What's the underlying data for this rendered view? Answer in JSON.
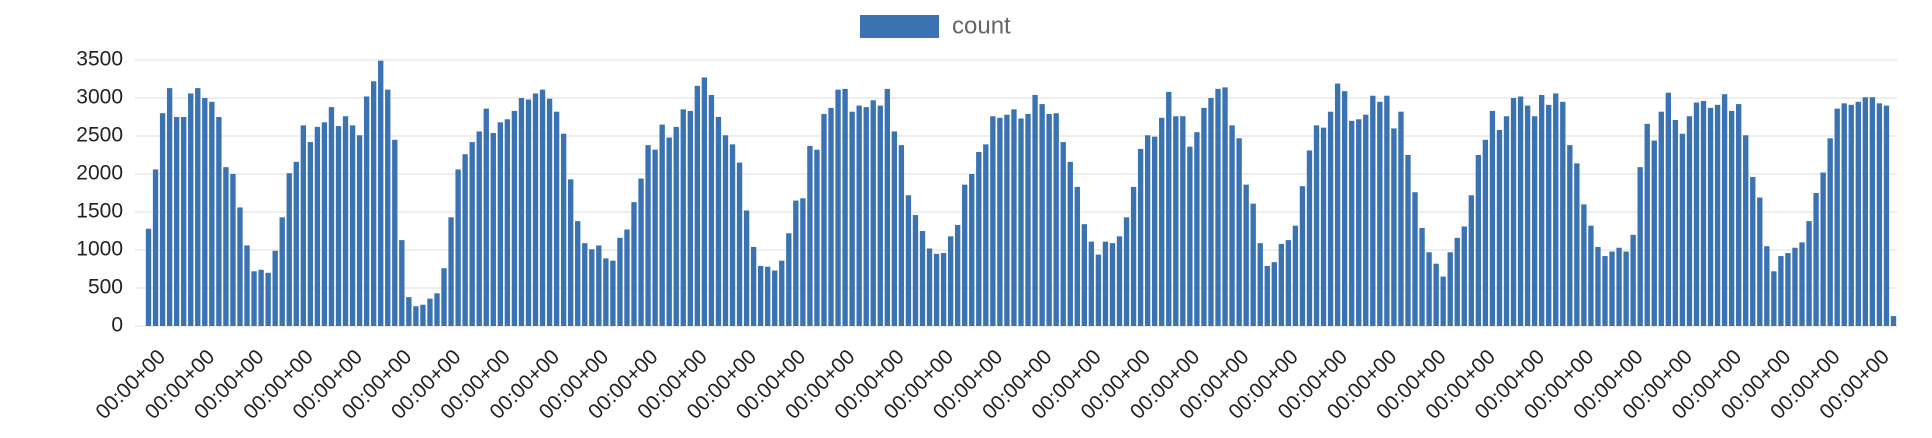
{
  "chart_data": {
    "type": "bar",
    "legend": "count",
    "color": "#3b72b1",
    "grid": true,
    "ylim": [
      0,
      3500
    ],
    "yticks": [
      0,
      500,
      1000,
      1500,
      2000,
      2500,
      3000,
      3500
    ],
    "categories": [
      null,
      null,
      "00:00+00",
      null,
      null,
      null,
      null,
      null,
      null,
      "00:00+00",
      null,
      null,
      null,
      null,
      null,
      null,
      "00:00+00",
      null,
      null,
      null,
      null,
      null,
      null,
      "00:00+00",
      null,
      null,
      null,
      null,
      null,
      null,
      "00:00+00",
      null,
      null,
      null,
      null,
      null,
      null,
      "00:00+00",
      null,
      null,
      null,
      null,
      null,
      null,
      "00:00+00",
      null,
      null,
      null,
      null,
      null,
      null,
      "00:00+00",
      null,
      null,
      null,
      null,
      null,
      null,
      "00:00+00",
      null,
      null,
      null,
      null,
      null,
      null,
      "00:00+00",
      null,
      null,
      null,
      null,
      null,
      null,
      "00:00+00",
      null,
      null,
      null,
      null,
      null,
      null,
      "00:00+00",
      null,
      null,
      null,
      null,
      null,
      null,
      "00:00+00",
      null,
      null,
      null,
      null,
      null,
      null,
      "00:00+00",
      null,
      null,
      null,
      null,
      null,
      null,
      "00:00+00",
      null,
      null,
      null,
      null,
      null,
      null,
      "00:00+00",
      null,
      null,
      null,
      null,
      null,
      null,
      "00:00+00",
      null,
      null,
      null,
      null,
      null,
      null,
      "00:00+00",
      null,
      null,
      null,
      null,
      null,
      null,
      "00:00+00",
      null,
      null,
      null,
      null,
      null,
      null,
      "00:00+00",
      null,
      null,
      null,
      null,
      null,
      null,
      "00:00+00",
      null,
      null,
      null,
      null,
      null,
      null,
      "00:00+00",
      null,
      null,
      null,
      null,
      null,
      null,
      "00:00+00",
      null,
      null,
      null,
      null,
      null,
      null,
      "00:00+00",
      null,
      null,
      null,
      null,
      null,
      null,
      "00:00+00",
      null,
      null,
      null,
      null,
      null,
      null,
      "00:00+00",
      null,
      null,
      null,
      null,
      null,
      null,
      "00:00+00",
      null,
      null,
      null,
      null,
      null,
      null,
      "00:00+00",
      null,
      null,
      null,
      null,
      null,
      null,
      "00:00+00",
      null,
      null,
      null,
      null,
      null,
      null,
      "00:00+00",
      null,
      null,
      null,
      null,
      null,
      null,
      "00:00+00",
      null,
      null,
      null,
      null,
      null,
      null,
      "00:00+00",
      null,
      null,
      null,
      null,
      null,
      null,
      "00:00+00",
      null,
      null,
      null,
      null,
      null,
      null,
      "00:00+00",
      null,
      null,
      null,
      null,
      null,
      null,
      "00:00+00",
      null,
      null,
      null,
      null,
      null,
      null,
      "00:00+00",
      null
    ],
    "values": [
      1280,
      2060,
      2800,
      3130,
      2750,
      2750,
      3060,
      3130,
      3000,
      2950,
      2750,
      2090,
      2000,
      1560,
      1060,
      720,
      740,
      700,
      990,
      1430,
      2010,
      2160,
      2640,
      2420,
      2620,
      2680,
      2880,
      2630,
      2760,
      2640,
      2510,
      3020,
      3220,
      3490,
      3110,
      2450,
      1130,
      380,
      260,
      280,
      360,
      430,
      760,
      1430,
      2060,
      2260,
      2420,
      2560,
      2860,
      2540,
      2680,
      2720,
      2830,
      3000,
      2980,
      3060,
      3110,
      2990,
      2820,
      2530,
      1930,
      1380,
      1090,
      1010,
      1060,
      890,
      860,
      1160,
      1270,
      1630,
      1940,
      2380,
      2320,
      2650,
      2480,
      2620,
      2850,
      2830,
      3160,
      3270,
      3040,
      2750,
      2510,
      2390,
      2150,
      1520,
      1040,
      790,
      780,
      730,
      860,
      1220,
      1650,
      1680,
      2370,
      2320,
      2790,
      2870,
      3110,
      3120,
      2820,
      2900,
      2880,
      2970,
      2900,
      3120,
      2560,
      2380,
      1720,
      1460,
      1250,
      1020,
      950,
      960,
      1180,
      1330,
      1860,
      2000,
      2290,
      2390,
      2760,
      2740,
      2780,
      2850,
      2730,
      2790,
      3040,
      2920,
      2790,
      2800,
      2420,
      2160,
      1830,
      1340,
      1110,
      940,
      1110,
      1090,
      1180,
      1430,
      1830,
      2330,
      2510,
      2490,
      2740,
      3080,
      2760,
      2760,
      2360,
      2550,
      2870,
      3000,
      3120,
      3140,
      2640,
      2470,
      1860,
      1610,
      1090,
      790,
      840,
      1080,
      1130,
      1320,
      1840,
      2310,
      2640,
      2610,
      2820,
      3190,
      3090,
      2700,
      2720,
      2780,
      3030,
      2950,
      3030,
      2600,
      2820,
      2250,
      1760,
      1290,
      970,
      820,
      650,
      970,
      1160,
      1310,
      1720,
      2250,
      2450,
      2830,
      2580,
      2760,
      3000,
      3020,
      2900,
      2760,
      3040,
      2910,
      3060,
      2950,
      2380,
      2140,
      1600,
      1320,
      1040,
      920,
      980,
      1030,
      980,
      1200,
      2090,
      2660,
      2440,
      2820,
      3070,
      2710,
      2530,
      2760,
      2940,
      2960,
      2870,
      2910,
      3050,
      2830,
      2920,
      2510,
      1960,
      1690,
      1050,
      720,
      920,
      960,
      1030,
      1100,
      1380,
      1750,
      2020,
      2470,
      2860,
      2930,
      2910,
      2950,
      3010,
      3010,
      2930,
      2900,
      130
    ]
  }
}
